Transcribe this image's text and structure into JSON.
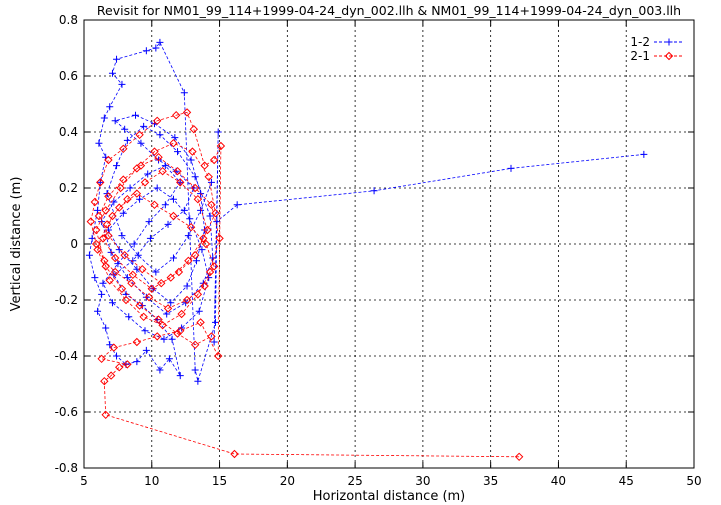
{
  "chart_data": {
    "type": "line",
    "title": "Revisit for NM01_99_114+1999-04-24_dyn_002.llh & NM01_99_114+1999-04-24_dyn_003.llh",
    "xlabel": "Horizontal distance (m)",
    "ylabel": "Vertical distance (m)",
    "xlim": [
      5,
      50
    ],
    "ylim": [
      -0.8,
      0.8
    ],
    "xticks": [
      "5",
      "10",
      "15",
      "20",
      "25",
      "30",
      "35",
      "40",
      "45",
      "50"
    ],
    "yticks": [
      "0.8",
      "0.6",
      "0.4",
      "0.2",
      "0",
      "-0.2",
      "-0.4",
      "-0.6",
      "-0.8"
    ],
    "grid": true,
    "legend_position": "top-right",
    "series": [
      {
        "name": "1-2",
        "color": "#0000ff",
        "marker": "plus",
        "points": [
          [
            46.3,
            0.32
          ],
          [
            36.5,
            0.27
          ],
          [
            26.4,
            0.19
          ],
          [
            16.3,
            0.14
          ],
          [
            14.8,
            0.08
          ],
          [
            14.6,
            -0.35
          ],
          [
            14.9,
            0.4
          ],
          [
            14.7,
            -0.28
          ],
          [
            13.4,
            -0.49
          ],
          [
            13.2,
            -0.45
          ],
          [
            12.4,
            0.54
          ],
          [
            10.6,
            0.72
          ],
          [
            10.3,
            0.7
          ],
          [
            9.6,
            0.69
          ],
          [
            7.4,
            0.66
          ],
          [
            7.1,
            0.61
          ],
          [
            7.8,
            0.57
          ],
          [
            6.9,
            0.49
          ],
          [
            6.5,
            0.45
          ],
          [
            6.1,
            0.36
          ],
          [
            6.6,
            0.31
          ],
          [
            6.2,
            0.22
          ],
          [
            6.0,
            0.12
          ],
          [
            5.6,
            0.02
          ],
          [
            5.4,
            -0.04
          ],
          [
            5.8,
            -0.12
          ],
          [
            6.3,
            -0.18
          ],
          [
            6.0,
            -0.24
          ],
          [
            6.6,
            -0.3
          ],
          [
            6.9,
            -0.36
          ],
          [
            7.4,
            -0.4
          ],
          [
            8.1,
            -0.43
          ],
          [
            8.9,
            -0.42
          ],
          [
            9.6,
            -0.38
          ],
          [
            10.6,
            -0.45
          ],
          [
            11.3,
            -0.41
          ],
          [
            12.1,
            -0.47
          ],
          [
            11.5,
            -0.34
          ],
          [
            10.4,
            -0.27
          ],
          [
            9.3,
            -0.22
          ],
          [
            8.1,
            -0.18
          ],
          [
            7.2,
            -0.11
          ],
          [
            8.6,
            -0.06
          ],
          [
            9.9,
            0.02
          ],
          [
            11.2,
            0.07
          ],
          [
            12.4,
            0.12
          ],
          [
            13.1,
            0.2
          ],
          [
            11.8,
            0.26
          ],
          [
            10.5,
            0.3
          ],
          [
            9.2,
            0.36
          ],
          [
            8.0,
            0.41
          ],
          [
            7.3,
            0.44
          ],
          [
            8.8,
            0.46
          ],
          [
            10.2,
            0.43
          ],
          [
            11.7,
            0.38
          ],
          [
            12.9,
            0.3
          ],
          [
            13.6,
            0.18
          ],
          [
            13.9,
            0.05
          ],
          [
            13.3,
            -0.06
          ],
          [
            12.6,
            -0.15
          ],
          [
            11.4,
            -0.21
          ],
          [
            10.1,
            -0.16
          ],
          [
            8.9,
            -0.09
          ],
          [
            7.6,
            -0.02
          ],
          [
            6.8,
            0.05
          ],
          [
            7.9,
            0.11
          ],
          [
            9.1,
            0.16
          ],
          [
            10.4,
            0.2
          ],
          [
            11.6,
            0.16
          ],
          [
            12.8,
            0.09
          ],
          [
            13.7,
            -0.02
          ],
          [
            14.2,
            -0.12
          ],
          [
            13.5,
            -0.24
          ],
          [
            12.2,
            -0.3
          ],
          [
            10.9,
            -0.34
          ],
          [
            9.5,
            -0.31
          ],
          [
            8.3,
            -0.26
          ],
          [
            7.1,
            -0.21
          ],
          [
            6.4,
            -0.14
          ],
          [
            7.5,
            -0.07
          ],
          [
            8.7,
            0.0
          ],
          [
            9.8,
            0.08
          ],
          [
            11.0,
            0.14
          ],
          [
            12.1,
            0.22
          ],
          [
            11.0,
            0.28
          ],
          [
            9.7,
            0.25
          ],
          [
            8.4,
            0.2
          ],
          [
            7.2,
            0.15
          ],
          [
            6.3,
            0.08
          ],
          [
            7.0,
            -0.03
          ],
          [
            8.2,
            -0.12
          ],
          [
            9.6,
            -0.19
          ],
          [
            11.1,
            -0.25
          ],
          [
            12.5,
            -0.21
          ],
          [
            13.8,
            -0.14
          ],
          [
            14.5,
            -0.05
          ],
          [
            14.3,
            0.1
          ],
          [
            13.2,
            0.24
          ],
          [
            11.9,
            0.33
          ],
          [
            10.6,
            0.39
          ],
          [
            9.4,
            0.42
          ],
          [
            8.2,
            0.37
          ],
          [
            7.4,
            0.28
          ],
          [
            6.7,
            0.18
          ],
          [
            7.8,
            0.03
          ],
          [
            9.0,
            -0.04
          ],
          [
            10.3,
            -0.1
          ],
          [
            11.6,
            -0.05
          ],
          [
            12.7,
            0.03
          ],
          [
            13.6,
            0.12
          ],
          [
            14.4,
            0.22
          ]
        ]
      },
      {
        "name": "2-1",
        "color": "#ff0000",
        "marker": "diamond",
        "points": [
          [
            37.1,
            -0.76
          ],
          [
            16.1,
            -0.75
          ],
          [
            6.6,
            -0.61
          ],
          [
            6.5,
            -0.49
          ],
          [
            7.0,
            -0.47
          ],
          [
            7.6,
            -0.44
          ],
          [
            8.2,
            -0.43
          ],
          [
            6.3,
            -0.41
          ],
          [
            7.2,
            -0.37
          ],
          [
            8.9,
            -0.35
          ],
          [
            10.4,
            -0.33
          ],
          [
            12.1,
            -0.31
          ],
          [
            13.6,
            -0.28
          ],
          [
            14.9,
            -0.4
          ],
          [
            15.1,
            0.35
          ],
          [
            14.6,
            0.3
          ],
          [
            13.9,
            0.28
          ],
          [
            13.1,
            0.41
          ],
          [
            12.6,
            0.47
          ],
          [
            11.8,
            0.46
          ],
          [
            10.4,
            0.44
          ],
          [
            9.1,
            0.39
          ],
          [
            7.9,
            0.34
          ],
          [
            6.8,
            0.3
          ],
          [
            6.2,
            0.22
          ],
          [
            5.8,
            0.15
          ],
          [
            5.5,
            0.08
          ],
          [
            5.9,
            0.0
          ],
          [
            6.5,
            -0.06
          ],
          [
            7.3,
            -0.1
          ],
          [
            8.5,
            -0.14
          ],
          [
            9.8,
            -0.19
          ],
          [
            11.2,
            -0.23
          ],
          [
            12.6,
            -0.2
          ],
          [
            13.9,
            -0.15
          ],
          [
            14.6,
            -0.08
          ],
          [
            14.0,
            0.0
          ],
          [
            12.9,
            0.06
          ],
          [
            11.6,
            0.1
          ],
          [
            10.2,
            0.14
          ],
          [
            8.9,
            0.18
          ],
          [
            7.6,
            0.13
          ],
          [
            6.7,
            0.07
          ],
          [
            6.0,
            -0.02
          ],
          [
            6.9,
            -0.13
          ],
          [
            8.1,
            -0.2
          ],
          [
            9.4,
            -0.26
          ],
          [
            10.8,
            -0.29
          ],
          [
            12.2,
            -0.25
          ],
          [
            13.4,
            -0.18
          ],
          [
            14.3,
            -0.1
          ],
          [
            15.0,
            0.02
          ],
          [
            14.4,
            0.14
          ],
          [
            13.2,
            0.2
          ],
          [
            11.9,
            0.26
          ],
          [
            10.5,
            0.31
          ],
          [
            9.2,
            0.28
          ],
          [
            7.9,
            0.23
          ],
          [
            6.8,
            0.17
          ],
          [
            6.1,
            0.1
          ],
          [
            6.8,
            0.03
          ],
          [
            8.0,
            -0.04
          ],
          [
            9.3,
            -0.09
          ],
          [
            10.7,
            -0.14
          ],
          [
            12.0,
            -0.1
          ],
          [
            13.2,
            -0.04
          ],
          [
            14.1,
            0.05
          ],
          [
            13.4,
            0.16
          ],
          [
            12.1,
            0.22
          ],
          [
            10.8,
            0.26
          ],
          [
            9.5,
            0.22
          ],
          [
            8.2,
            0.16
          ],
          [
            7.1,
            0.1
          ],
          [
            6.4,
            0.02
          ],
          [
            7.3,
            -0.05
          ],
          [
            8.6,
            -0.11
          ],
          [
            10.0,
            -0.16
          ],
          [
            11.4,
            -0.12
          ],
          [
            12.7,
            -0.06
          ],
          [
            13.8,
            0.02
          ],
          [
            14.7,
            0.11
          ],
          [
            14.2,
            0.24
          ],
          [
            13.0,
            0.33
          ],
          [
            11.6,
            0.36
          ],
          [
            10.2,
            0.33
          ],
          [
            8.9,
            0.27
          ],
          [
            7.7,
            0.2
          ],
          [
            6.6,
            0.12
          ],
          [
            5.9,
            0.05
          ],
          [
            6.6,
            -0.08
          ],
          [
            7.8,
            -0.16
          ],
          [
            9.1,
            -0.22
          ],
          [
            10.5,
            -0.27
          ],
          [
            11.9,
            -0.32
          ],
          [
            13.2,
            -0.36
          ],
          [
            14.4,
            -0.33
          ]
        ]
      }
    ]
  }
}
